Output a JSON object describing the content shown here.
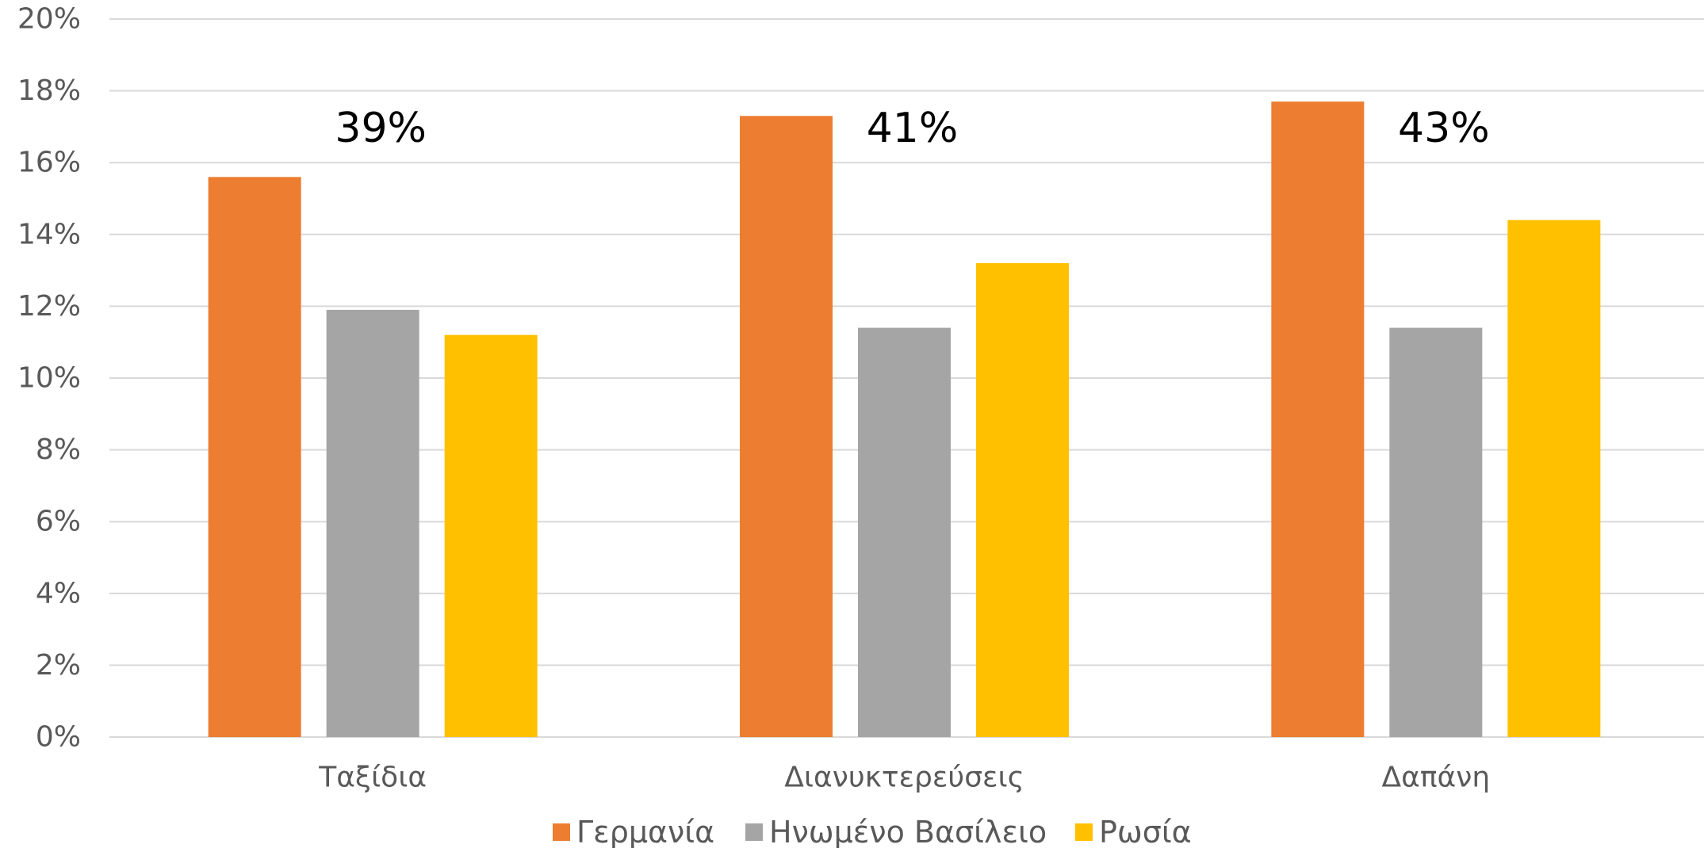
{
  "chart_data": {
    "type": "bar",
    "categories": [
      "Ταξίδια",
      "Διανυκτερεύσεις",
      "Δαπάνη"
    ],
    "series": [
      {
        "name": "Γερμανία",
        "values": [
          15.6,
          17.3,
          17.7
        ],
        "color": "#ED7D31"
      },
      {
        "name": "Ηνωμένο Βασίλειο",
        "values": [
          11.9,
          11.4,
          11.4
        ],
        "color": "#A5A5A5"
      },
      {
        "name": "Ρωσία",
        "values": [
          11.2,
          13.2,
          14.4
        ],
        "color": "#FFC000"
      }
    ],
    "annotations": [
      "39%",
      "41%",
      "43%"
    ],
    "ylim": [
      0,
      20
    ],
    "yticks": [
      {
        "value": 0,
        "label": "0%"
      },
      {
        "value": 2,
        "label": "2%"
      },
      {
        "value": 4,
        "label": "4%"
      },
      {
        "value": 6,
        "label": "6%"
      },
      {
        "value": 8,
        "label": "8%"
      },
      {
        "value": 10,
        "label": "10%"
      },
      {
        "value": 12,
        "label": "12%"
      },
      {
        "value": 14,
        "label": "14%"
      },
      {
        "value": 16,
        "label": "16%"
      },
      {
        "value": 18,
        "label": "18%"
      },
      {
        "value": 20,
        "label": "20%"
      }
    ],
    "grid": true,
    "legend_position": "bottom",
    "title": "",
    "xlabel": "",
    "ylabel": ""
  }
}
